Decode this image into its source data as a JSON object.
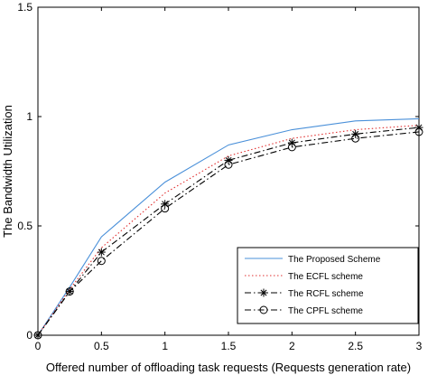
{
  "chart_data": {
    "type": "line",
    "title": "",
    "xlabel": "Offered number of offloading task requests (Requests generation rate)",
    "ylabel": "The Bandwidth Utilization",
    "xlim": [
      0,
      3
    ],
    "ylim": [
      0,
      1.5
    ],
    "x_ticks": [
      "0",
      "0.5",
      "1",
      "1.5",
      "2",
      "2.5",
      "3"
    ],
    "y_ticks": [
      "0",
      "0.5",
      "1",
      "1.5"
    ],
    "grid": false,
    "legend_position": "bottom-right",
    "x": [
      0,
      0.25,
      0.5,
      1,
      1.5,
      2,
      2.5,
      3
    ],
    "series": [
      {
        "name": "The Proposed Scheme",
        "color": "#4a90d9",
        "line": "solid",
        "marker": "none",
        "values": [
          0,
          0.22,
          0.45,
          0.7,
          0.87,
          0.94,
          0.98,
          0.99
        ]
      },
      {
        "name": "The ECFL scheme",
        "color": "#e03030",
        "line": "dotted",
        "marker": "none",
        "values": [
          0,
          0.21,
          0.4,
          0.65,
          0.82,
          0.9,
          0.94,
          0.96
        ]
      },
      {
        "name": "The RCFL scheme",
        "color": "#000000",
        "line": "dashdot",
        "marker": "asterisk",
        "values": [
          0,
          0.2,
          0.38,
          0.6,
          0.8,
          0.88,
          0.92,
          0.95
        ]
      },
      {
        "name": "The CPFL scheme",
        "color": "#000000",
        "line": "dashdot",
        "marker": "circle",
        "values": [
          0,
          0.2,
          0.34,
          0.58,
          0.78,
          0.86,
          0.9,
          0.93
        ]
      }
    ]
  }
}
